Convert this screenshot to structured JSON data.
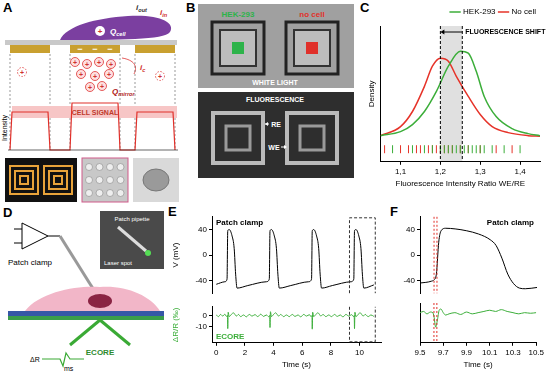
{
  "panels": {
    "A": {
      "label": "A",
      "i_out": {
        "main": "i",
        "sub": "out"
      },
      "i_in": {
        "main": "i",
        "sub": "in"
      },
      "q_cell": {
        "main": "Q",
        "sub": "cell"
      },
      "q_mirror": {
        "main": "Q",
        "sub": "mirror"
      },
      "i_c": {
        "main": "i",
        "sub": "c"
      },
      "plus": "+",
      "minus": "−",
      "intensity": "Intensity",
      "cell_signal": "CELL SIGNAL"
    },
    "B": {
      "label": "B",
      "white_light": "WHITE LIGHT",
      "cell": "HEK-293",
      "no_cell": "no cell",
      "fluorescence": "FLUORESCENCE",
      "re": "RE",
      "we": "WE"
    },
    "D": {
      "label": "D",
      "patch_clamp": "Patch clamp",
      "patch_pipette": "Patch pipette",
      "laser_spot": "Laser spot",
      "ecore": "ECORE",
      "delta_r": "ΔR",
      "ms": "ms"
    }
  },
  "chart_data": [
    {
      "panel": "C",
      "type": "line",
      "x_label": "Fluorescence Intensity Ratio WE/RE",
      "y_label": "Density",
      "xlim": [
        1.05,
        1.45
      ],
      "xticks": [
        {
          "value": 1.1,
          "label": "1,1"
        },
        {
          "value": 1.2,
          "label": "1,2"
        },
        {
          "value": 1.3,
          "label": "1,3"
        },
        {
          "value": 1.4,
          "label": "1,4"
        }
      ],
      "ylim": [
        -2.5,
        11
      ],
      "tick_labels": "x",
      "grid": false,
      "legend": "upper right",
      "vlines": [
        1.2,
        1.255
      ],
      "annotations": [
        "FLUORESCENCE SHIFT"
      ],
      "series": [
        {
          "name": "HEK-293",
          "color": "#3cae3a",
          "x": [
            1.05,
            1.1,
            1.13,
            1.16,
            1.19,
            1.22,
            1.25,
            1.27,
            1.29,
            1.31,
            1.34,
            1.38,
            1.42,
            1.45
          ],
          "values": [
            0.1,
            0.5,
            1.2,
            2.5,
            4.5,
            7,
            8.5,
            8.3,
            6.5,
            4,
            2,
            0.8,
            0.3,
            0.1
          ],
          "rug": [
            1.08,
            1.13,
            1.16,
            1.18,
            1.2,
            1.21,
            1.22,
            1.23,
            1.24,
            1.25,
            1.26,
            1.27,
            1.28,
            1.29,
            1.3,
            1.31,
            1.33,
            1.36,
            1.4
          ]
        },
        {
          "name": "No cell",
          "color": "#e63329",
          "x": [
            1.05,
            1.1,
            1.13,
            1.16,
            1.18,
            1.2,
            1.22,
            1.24,
            1.27,
            1.3,
            1.33,
            1.37,
            1.42,
            1.45
          ],
          "values": [
            0.1,
            1.0,
            2.5,
            5,
            7,
            7.8,
            7.5,
            6,
            4,
            2.2,
            1.0,
            0.4,
            0.1,
            0.05
          ],
          "rug": [
            1.06,
            1.1,
            1.12,
            1.14,
            1.15,
            1.17,
            1.18,
            1.19,
            1.2,
            1.21,
            1.22,
            1.23,
            1.25,
            1.27,
            1.3,
            1.34,
            1.38
          ]
        }
      ]
    },
    {
      "panel": "E",
      "type": "line",
      "x_label": "Time (s)",
      "xlim": [
        -0.3,
        11.5
      ],
      "xticks": [
        0,
        2,
        4,
        6,
        8,
        10
      ],
      "grid": false,
      "highlight_x": [
        9.3,
        11.1
      ],
      "subplots": [
        {
          "y_label": "V (mV)",
          "ylim": [
            -60,
            60
          ],
          "yticks": [
            -40,
            0,
            40
          ],
          "tick_labels": "y",
          "legend": "upper left",
          "series": [
            {
              "name": "Patch clamp",
              "color": "#000000",
              "x": [
                0,
                0.6,
                0.75,
                0.8,
                0.9,
                1.1,
                1.25,
                1.35,
                1.45,
                2.2,
                3.5,
                3.7,
                3.75,
                3.85,
                4.05,
                4.2,
                4.3,
                4.4,
                5.2,
                6.45,
                6.65,
                6.7,
                6.8,
                7.0,
                7.15,
                7.25,
                7.35,
                8.1,
                9.4,
                9.6,
                9.65,
                9.75,
                9.95,
                10.1,
                10.2,
                10.3,
                11
              ],
              "values": [
                -46,
                -42,
                -38,
                38,
                40,
                30,
                10,
                -30,
                -52,
                -48,
                -42,
                -38,
                38,
                40,
                30,
                10,
                -30,
                -52,
                -48,
                -42,
                -38,
                38,
                40,
                30,
                10,
                -30,
                -52,
                -48,
                -42,
                -38,
                38,
                40,
                30,
                10,
                -30,
                -52,
                -47
              ]
            }
          ]
        },
        {
          "y_label": "ΔR/R (‰)",
          "ylim": [
            -25,
            8
          ],
          "yticks": [
            -10,
            0
          ],
          "legend": "lower left",
          "series": [
            {
              "name": "ECORE",
              "color": "#3cae3a",
              "x": [
                0,
                0.15,
                0.3,
                0.45,
                0.6,
                0.7,
                0.78,
                0.8,
                0.83,
                0.9,
                1.05,
                1.2,
                1.3,
                1.4,
                1.55,
                1.7,
                1.9,
                2.1,
                2.3,
                2.5,
                2.7,
                2.9,
                3.1,
                3.3,
                3.5,
                3.65,
                3.73,
                3.75,
                3.78,
                3.85,
                4.0,
                4.15,
                4.25,
                4.35,
                4.5,
                4.7,
                4.9,
                5.1,
                5.3,
                5.5,
                5.7,
                5.9,
                6.1,
                6.3,
                6.5,
                6.62,
                6.68,
                6.7,
                6.73,
                6.8,
                6.95,
                7.1,
                7.2,
                7.3,
                7.45,
                7.65,
                7.85,
                8.05,
                8.25,
                8.45,
                8.65,
                8.85,
                9.05,
                9.25,
                9.45,
                9.58,
                9.63,
                9.65,
                9.68,
                9.75,
                9.9,
                10.05,
                10.15,
                10.25,
                10.4,
                10.6,
                10.8,
                11.0
              ],
              "values": [
                0.5,
                -1,
                1,
                -0.5,
                1.2,
                -0.8,
                0,
                -12,
                3,
                -1,
                1,
                2.5,
                1,
                -0.5,
                1,
                -1,
                0.5,
                -1.2,
                1,
                -0.5,
                0.8,
                -1,
                1.2,
                -0.8,
                0.5,
                -1,
                0,
                -11,
                3.5,
                -1,
                1,
                2.5,
                1,
                -0.5,
                1,
                -1,
                0.5,
                -1,
                1,
                -0.8,
                0.5,
                -1.2,
                1,
                -0.5,
                0.8,
                -1,
                0,
                -12.5,
                3,
                -1,
                1,
                2.5,
                1,
                -0.5,
                1,
                -1,
                0.5,
                -1,
                1,
                -0.8,
                0.5,
                -1.2,
                1,
                -0.5,
                0.8,
                -1,
                0,
                -12,
                3,
                -1,
                1,
                2.5,
                1,
                -0.5,
                1,
                -1,
                0.5,
                -0.8
              ]
            }
          ]
        }
      ]
    },
    {
      "panel": "F",
      "type": "line",
      "x_label": "Time (s)",
      "xlim": [
        9.5,
        10.5
      ],
      "xticks": [
        9.5,
        9.7,
        9.9,
        10.1,
        10.3,
        10.5
      ],
      "grid": false,
      "vlines": [
        9.62,
        9.645
      ],
      "subplots": [
        {
          "ylim": [
            -60,
            60
          ],
          "yticks": [
            -40,
            0,
            40
          ],
          "tick_labels": "y",
          "legend": "upper right",
          "series": [
            {
              "name": "Patch clamp",
              "color": "#000000",
              "x": [
                9.5,
                9.55,
                9.6,
                9.62,
                9.64,
                9.66,
                9.68,
                9.72,
                9.8,
                9.9,
                10.0,
                10.1,
                10.15,
                10.2,
                10.25,
                10.3,
                10.35,
                10.4,
                10.5
              ],
              "values": [
                -44,
                -43,
                -41,
                -39,
                -30,
                20,
                38,
                42,
                41,
                38,
                33,
                24,
                15,
                -5,
                -30,
                -45,
                -52,
                -53,
                -51
              ]
            }
          ]
        },
        {
          "ylim": [
            -25,
            8
          ],
          "tick_labels": "x",
          "series": [
            {
              "color": "#3cae3a",
              "x": [
                9.5,
                9.53,
                9.56,
                9.59,
                9.61,
                9.62,
                9.635,
                9.65,
                9.665,
                9.68,
                9.7,
                9.72,
                9.75,
                9.8,
                9.85,
                9.9,
                9.95,
                10.0,
                10.05,
                10.1,
                10.15,
                10.2,
                10.25,
                10.3,
                10.35,
                10.4,
                10.45,
                10.5
              ],
              "values": [
                0,
                1,
                -1,
                0.5,
                0,
                -3,
                -12,
                -6,
                2,
                3,
                0,
                -2,
                -1,
                0,
                -1.5,
                0.5,
                -1,
                0,
                1,
                2,
                1,
                2.5,
                1,
                0,
                -1,
                0,
                -0.5,
                0
              ]
            }
          ]
        }
      ]
    }
  ]
}
